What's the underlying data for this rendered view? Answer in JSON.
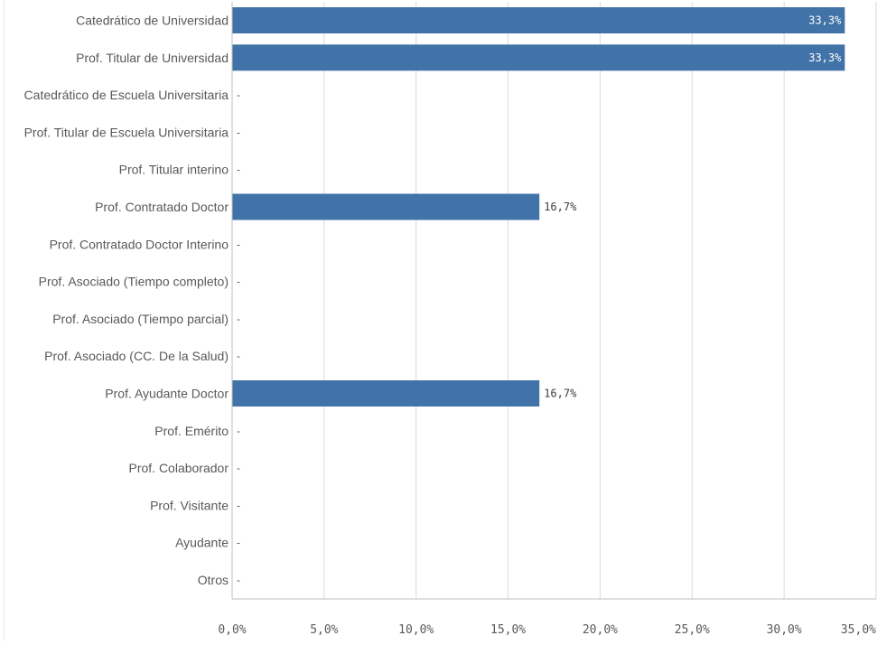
{
  "chart_data": {
    "type": "bar",
    "orientation": "horizontal",
    "categories": [
      "Catedrático de Universidad",
      "Prof. Titular de Universidad",
      "Catedrático de Escuela Universitaria",
      "Prof. Titular de Escuela Universitaria",
      "Prof. Titular interino",
      "Prof. Contratado Doctor",
      "Prof. Contratado Doctor Interino",
      "Prof. Asociado (Tiempo completo)",
      "Prof. Asociado (Tiempo parcial)",
      "Prof. Asociado (CC. De la Salud)",
      "Prof. Ayudante Doctor",
      "Prof. Emérito",
      "Prof. Colaborador",
      "Prof. Visitante",
      "Ayudante",
      "Otros"
    ],
    "values": [
      33.3,
      33.3,
      null,
      null,
      null,
      16.7,
      null,
      null,
      null,
      null,
      16.7,
      null,
      null,
      null,
      null,
      null
    ],
    "value_labels": [
      "33,3%",
      "33,3%",
      "-",
      "-",
      "-",
      "16,7%",
      "-",
      "-",
      "-",
      "-",
      "16,7%",
      "-",
      "-",
      "-",
      "-",
      "-"
    ],
    "xlim": [
      0,
      35
    ],
    "xticks": [
      0,
      5,
      10,
      15,
      20,
      25,
      30,
      35
    ],
    "xtick_labels": [
      "0,0%",
      "5,0%",
      "10,0%",
      "15,0%",
      "20,0%",
      "25,0%",
      "30,0%",
      "35,0%"
    ],
    "title": "",
    "xlabel": "",
    "ylabel": "",
    "grid": "vertical",
    "legend": "none"
  },
  "colors": {
    "bar": "#4273a8",
    "grid": "#d9d9d9",
    "axis": "#bfbfbf",
    "label_text": "#595959",
    "value_text_inside": "#ffffff",
    "value_text_outside": "#404040"
  }
}
